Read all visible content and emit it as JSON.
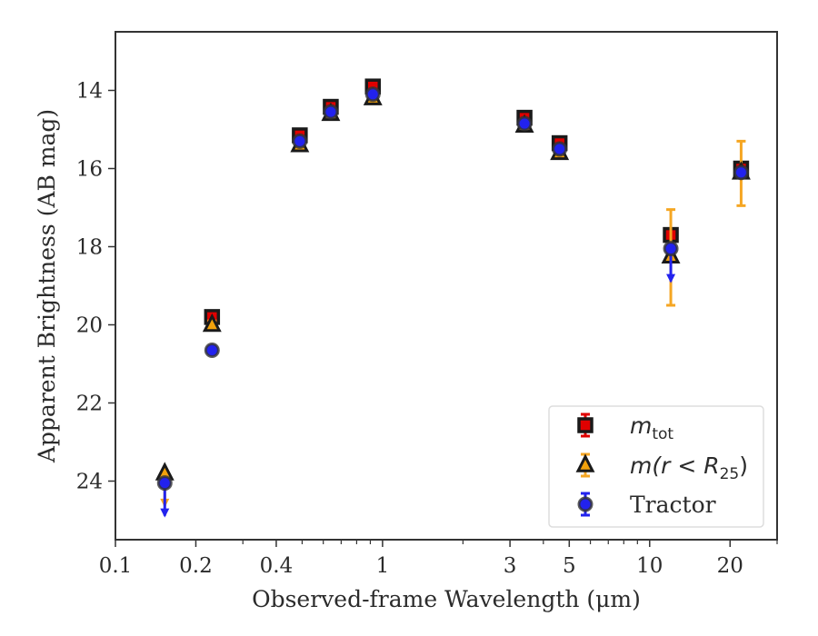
{
  "chart_data": {
    "type": "scatter",
    "title": "",
    "xlabel": "Observed-frame Wavelength (μm)",
    "ylabel": "Apparent Brightness (AB mag)",
    "xscale": "log",
    "xlim": [
      0.1,
      30
    ],
    "ylim": [
      25.5,
      12.5
    ],
    "y_inverted": true,
    "x_ticks": [
      0.1,
      0.2,
      0.4,
      1,
      3,
      5,
      10,
      20
    ],
    "x_tick_labels": [
      "0.1",
      "0.2",
      "0.4",
      "1",
      "3",
      "5",
      "10",
      "20"
    ],
    "y_ticks": [
      14,
      16,
      18,
      20,
      22,
      24
    ],
    "y_tick_labels": [
      "14",
      "16",
      "18",
      "20",
      "22",
      "24"
    ],
    "grid": false,
    "legend_position": "lower-right",
    "legend": [
      {
        "series": "mtot",
        "label_main": "m",
        "label_sub": "tot"
      },
      {
        "series": "mr25",
        "label_main": "m(r < R",
        "label_sub": "25",
        "label_end": ")"
      },
      {
        "series": "tractor",
        "label_main": "Tractor"
      }
    ],
    "series": [
      {
        "key": "mtot",
        "marker": "square",
        "fill": "#e00000",
        "edge": "#1a1a1a",
        "errcolor": "#e00000",
        "points": [
          {
            "x": 0.23,
            "y": 19.8,
            "err": 0.1
          },
          {
            "x": 0.49,
            "y": 15.15,
            "err": 0.05
          },
          {
            "x": 0.64,
            "y": 14.42,
            "err": 0.05
          },
          {
            "x": 0.92,
            "y": 13.9,
            "err": 0.05
          },
          {
            "x": 3.4,
            "y": 14.7,
            "err": 0.05
          },
          {
            "x": 4.6,
            "y": 15.35,
            "err": 0.05
          },
          {
            "x": 12.0,
            "y": 17.7,
            "err": 0.1
          },
          {
            "x": 22.0,
            "y": 16.0,
            "err": 0.1
          }
        ]
      },
      {
        "key": "mr25",
        "marker": "triangle",
        "fill": "#f2a20c",
        "edge": "#1a1a1a",
        "errcolor": "#f5a623",
        "points": [
          {
            "x": 0.153,
            "y": 23.8,
            "upper_limit": true
          },
          {
            "x": 0.23,
            "y": 20.0,
            "err": 0.1
          },
          {
            "x": 0.49,
            "y": 15.4,
            "err": 0.05
          },
          {
            "x": 0.64,
            "y": 14.6,
            "err": 0.05
          },
          {
            "x": 0.92,
            "y": 14.2,
            "err": 0.05
          },
          {
            "x": 3.4,
            "y": 14.9,
            "err": 0.05
          },
          {
            "x": 4.6,
            "y": 15.6,
            "err": 0.05
          },
          {
            "x": 12.0,
            "y": 18.25,
            "err_low": 1.2,
            "err_high": 1.25
          },
          {
            "x": 22.0,
            "y": 16.1,
            "err_low": 0.8,
            "err_high": 0.85
          }
        ]
      },
      {
        "key": "tractor",
        "marker": "circle",
        "fill": "#2222ee",
        "edge": "#333333",
        "errcolor": "#2222ee",
        "points": [
          {
            "x": 0.153,
            "y": 24.05,
            "upper_limit": true
          },
          {
            "x": 0.23,
            "y": 20.65,
            "err": 0.05
          },
          {
            "x": 0.49,
            "y": 15.3,
            "err": 0.05
          },
          {
            "x": 0.64,
            "y": 14.55,
            "err": 0.05
          },
          {
            "x": 0.92,
            "y": 14.1,
            "err": 0.05
          },
          {
            "x": 3.4,
            "y": 14.85,
            "err": 0.05
          },
          {
            "x": 4.6,
            "y": 15.5,
            "err": 0.05
          },
          {
            "x": 12.0,
            "y": 18.05,
            "upper_limit": true
          },
          {
            "x": 22.0,
            "y": 16.1,
            "err": 0.1
          }
        ]
      }
    ]
  }
}
